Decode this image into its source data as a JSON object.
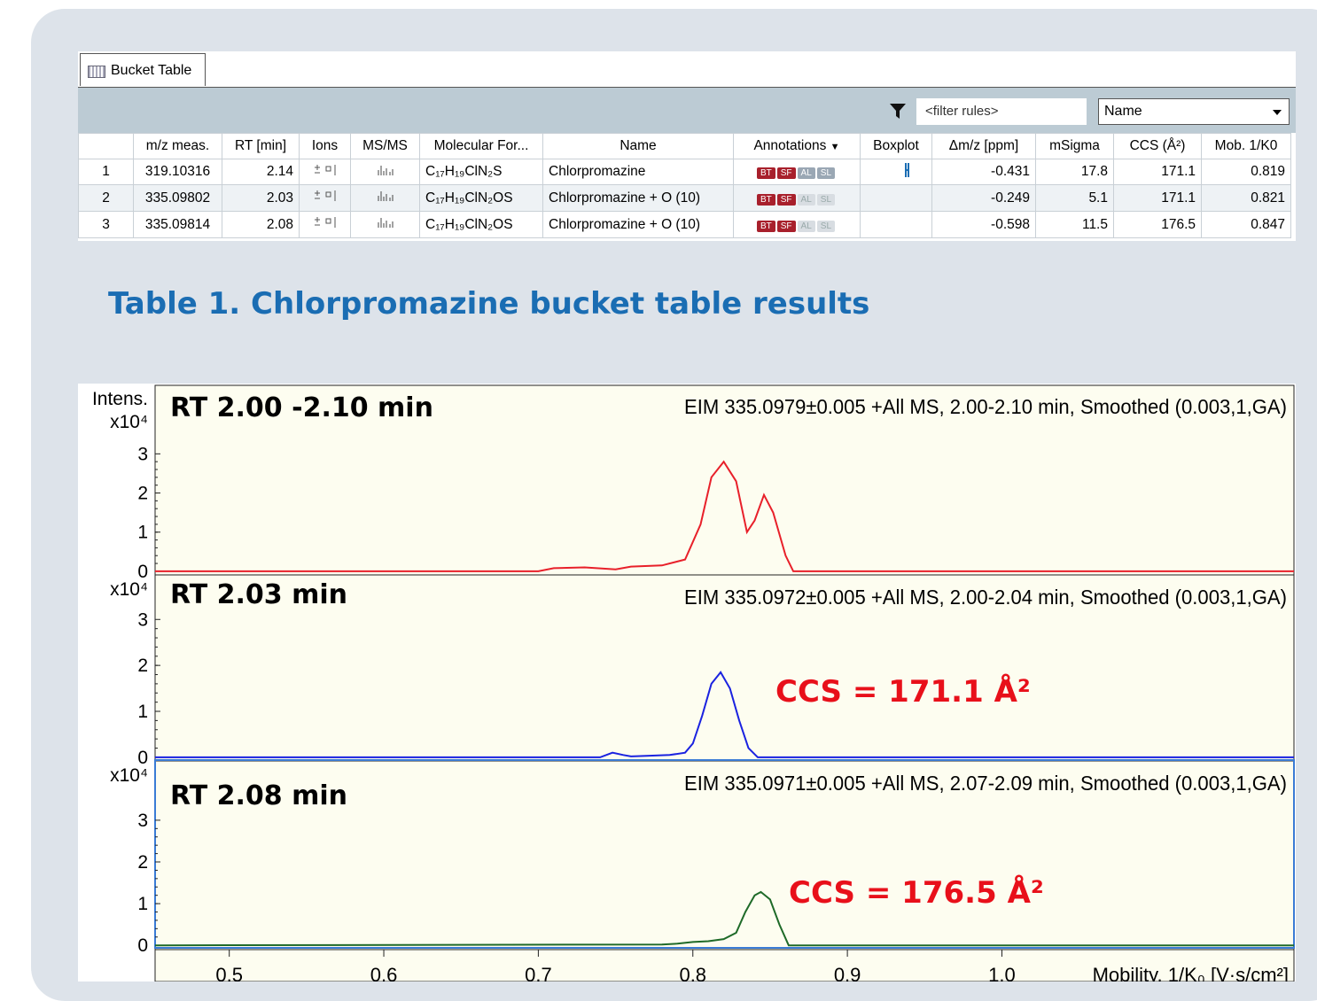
{
  "table": {
    "tab": "Bucket Table",
    "filter_placeholder": "<filter rules>",
    "dropdown": "Name",
    "columns": [
      "m/z meas.",
      "RT [min]",
      "Ions",
      "MS/MS",
      "Molecular For...",
      "Name",
      "Annotations",
      "Boxplot",
      "Δm/z [ppm]",
      "mSigma",
      "CCS (Å²)",
      "Mob. 1/K0"
    ],
    "badges": [
      "BT",
      "SF",
      "AL",
      "SL"
    ],
    "rows": [
      {
        "no": 1,
        "mz": 319.10316,
        "rt": 2.14,
        "formula": "C₁₇H₁₉ClN₂S",
        "name": "Chlorpromazine",
        "dmz": -0.431,
        "msigma": 17.8,
        "ccs": 171.1,
        "mob": 0.819
      },
      {
        "no": 2,
        "mz": 335.09802,
        "rt": 2.03,
        "formula": "C₁₇H₁₉ClN₂OS",
        "name": "Chlorpromazine + O (10)",
        "dmz": -0.249,
        "msigma": 5.1,
        "ccs": 171.1,
        "mob": 0.821
      },
      {
        "no": 3,
        "mz": 335.09814,
        "rt": 2.08,
        "formula": "C₁₇H₁₉ClN₂OS",
        "name": "Chlorpromazine + O (10)",
        "dmz": -0.598,
        "msigma": 11.5,
        "ccs": 176.5,
        "mob": 0.847
      }
    ]
  },
  "caption": "Table 1. Chlorpromazine bucket table results",
  "chart_data": [
    {
      "type": "line",
      "title": "EIM 335.0979±0.005 +All MS, 2.00-2.10 min, Smoothed (0.003,1,GA)",
      "annotations": [
        "RT 2.00 -2.10 min"
      ],
      "ylabel": "Intens.",
      "y_unit": "x10⁴",
      "x": [
        0.452,
        0.7,
        0.71,
        0.73,
        0.75,
        0.76,
        0.78,
        0.795,
        0.805,
        0.812,
        0.82,
        0.828,
        0.835,
        0.84,
        0.846,
        0.852,
        0.86,
        0.865,
        1.189
      ],
      "series": [
        {
          "color": "#e8202a",
          "values": [
            0,
            0,
            0.08,
            0.1,
            0.05,
            0.12,
            0.15,
            0.3,
            1.2,
            2.4,
            2.8,
            2.3,
            1.0,
            1.3,
            1.95,
            1.5,
            0.4,
            0,
            0
          ]
        }
      ],
      "xlim": [
        0.452,
        1.189
      ],
      "ylim": [
        -0.07,
        4.75
      ],
      "yticks": [
        0,
        1,
        2,
        3
      ]
    },
    {
      "type": "line",
      "title": "EIM 335.0972±0.005 +All MS, 2.00-2.04 min, Smoothed (0.003,1,GA)",
      "annotations": [
        "RT 2.03 min",
        "CCS = 171.1 Å²"
      ],
      "y_unit": "x10⁴",
      "x": [
        0.452,
        0.74,
        0.748,
        0.755,
        0.76,
        0.77,
        0.785,
        0.795,
        0.8,
        0.806,
        0.812,
        0.818,
        0.824,
        0.83,
        0.836,
        0.842,
        1.189
      ],
      "series": [
        {
          "color": "#1a22e0",
          "values": [
            0,
            0,
            0.1,
            0.05,
            0.02,
            0.03,
            0.05,
            0.1,
            0.3,
            0.9,
            1.6,
            1.85,
            1.5,
            0.8,
            0.2,
            0,
            0
          ]
        }
      ],
      "xlim": [
        0.452,
        1.189
      ],
      "ylim": [
        -0.06,
        3.95
      ],
      "yticks": [
        0,
        1,
        2,
        3
      ]
    },
    {
      "type": "line",
      "title": "EIM 335.0971±0.005 +All MS, 2.07-2.09 min, Smoothed (0.003,1,GA)",
      "annotations": [
        "RT 2.08 min",
        "CCS = 176.5 Å²"
      ],
      "y_unit": "x10⁴",
      "xlabel": "Mobility, 1/K₀ [V·s/cm²]",
      "x": [
        0.452,
        0.78,
        0.79,
        0.8,
        0.81,
        0.82,
        0.828,
        0.834,
        0.84,
        0.844,
        0.85,
        0.856,
        0.862,
        1.189
      ],
      "series": [
        {
          "color": "#1e6a28",
          "values": [
            0,
            0.02,
            0.04,
            0.08,
            0.1,
            0.15,
            0.3,
            0.8,
            1.2,
            1.28,
            1.1,
            0.5,
            0,
            0
          ]
        }
      ],
      "xlim": [
        0.452,
        1.189
      ],
      "ylim": [
        -0.06,
        4.4
      ],
      "yticks": [
        0,
        1,
        2,
        3
      ],
      "xticks": [
        0.5,
        0.6,
        0.7,
        0.8,
        0.9,
        {
          "value": 1,
          "label": "1.0"
        }
      ]
    }
  ]
}
